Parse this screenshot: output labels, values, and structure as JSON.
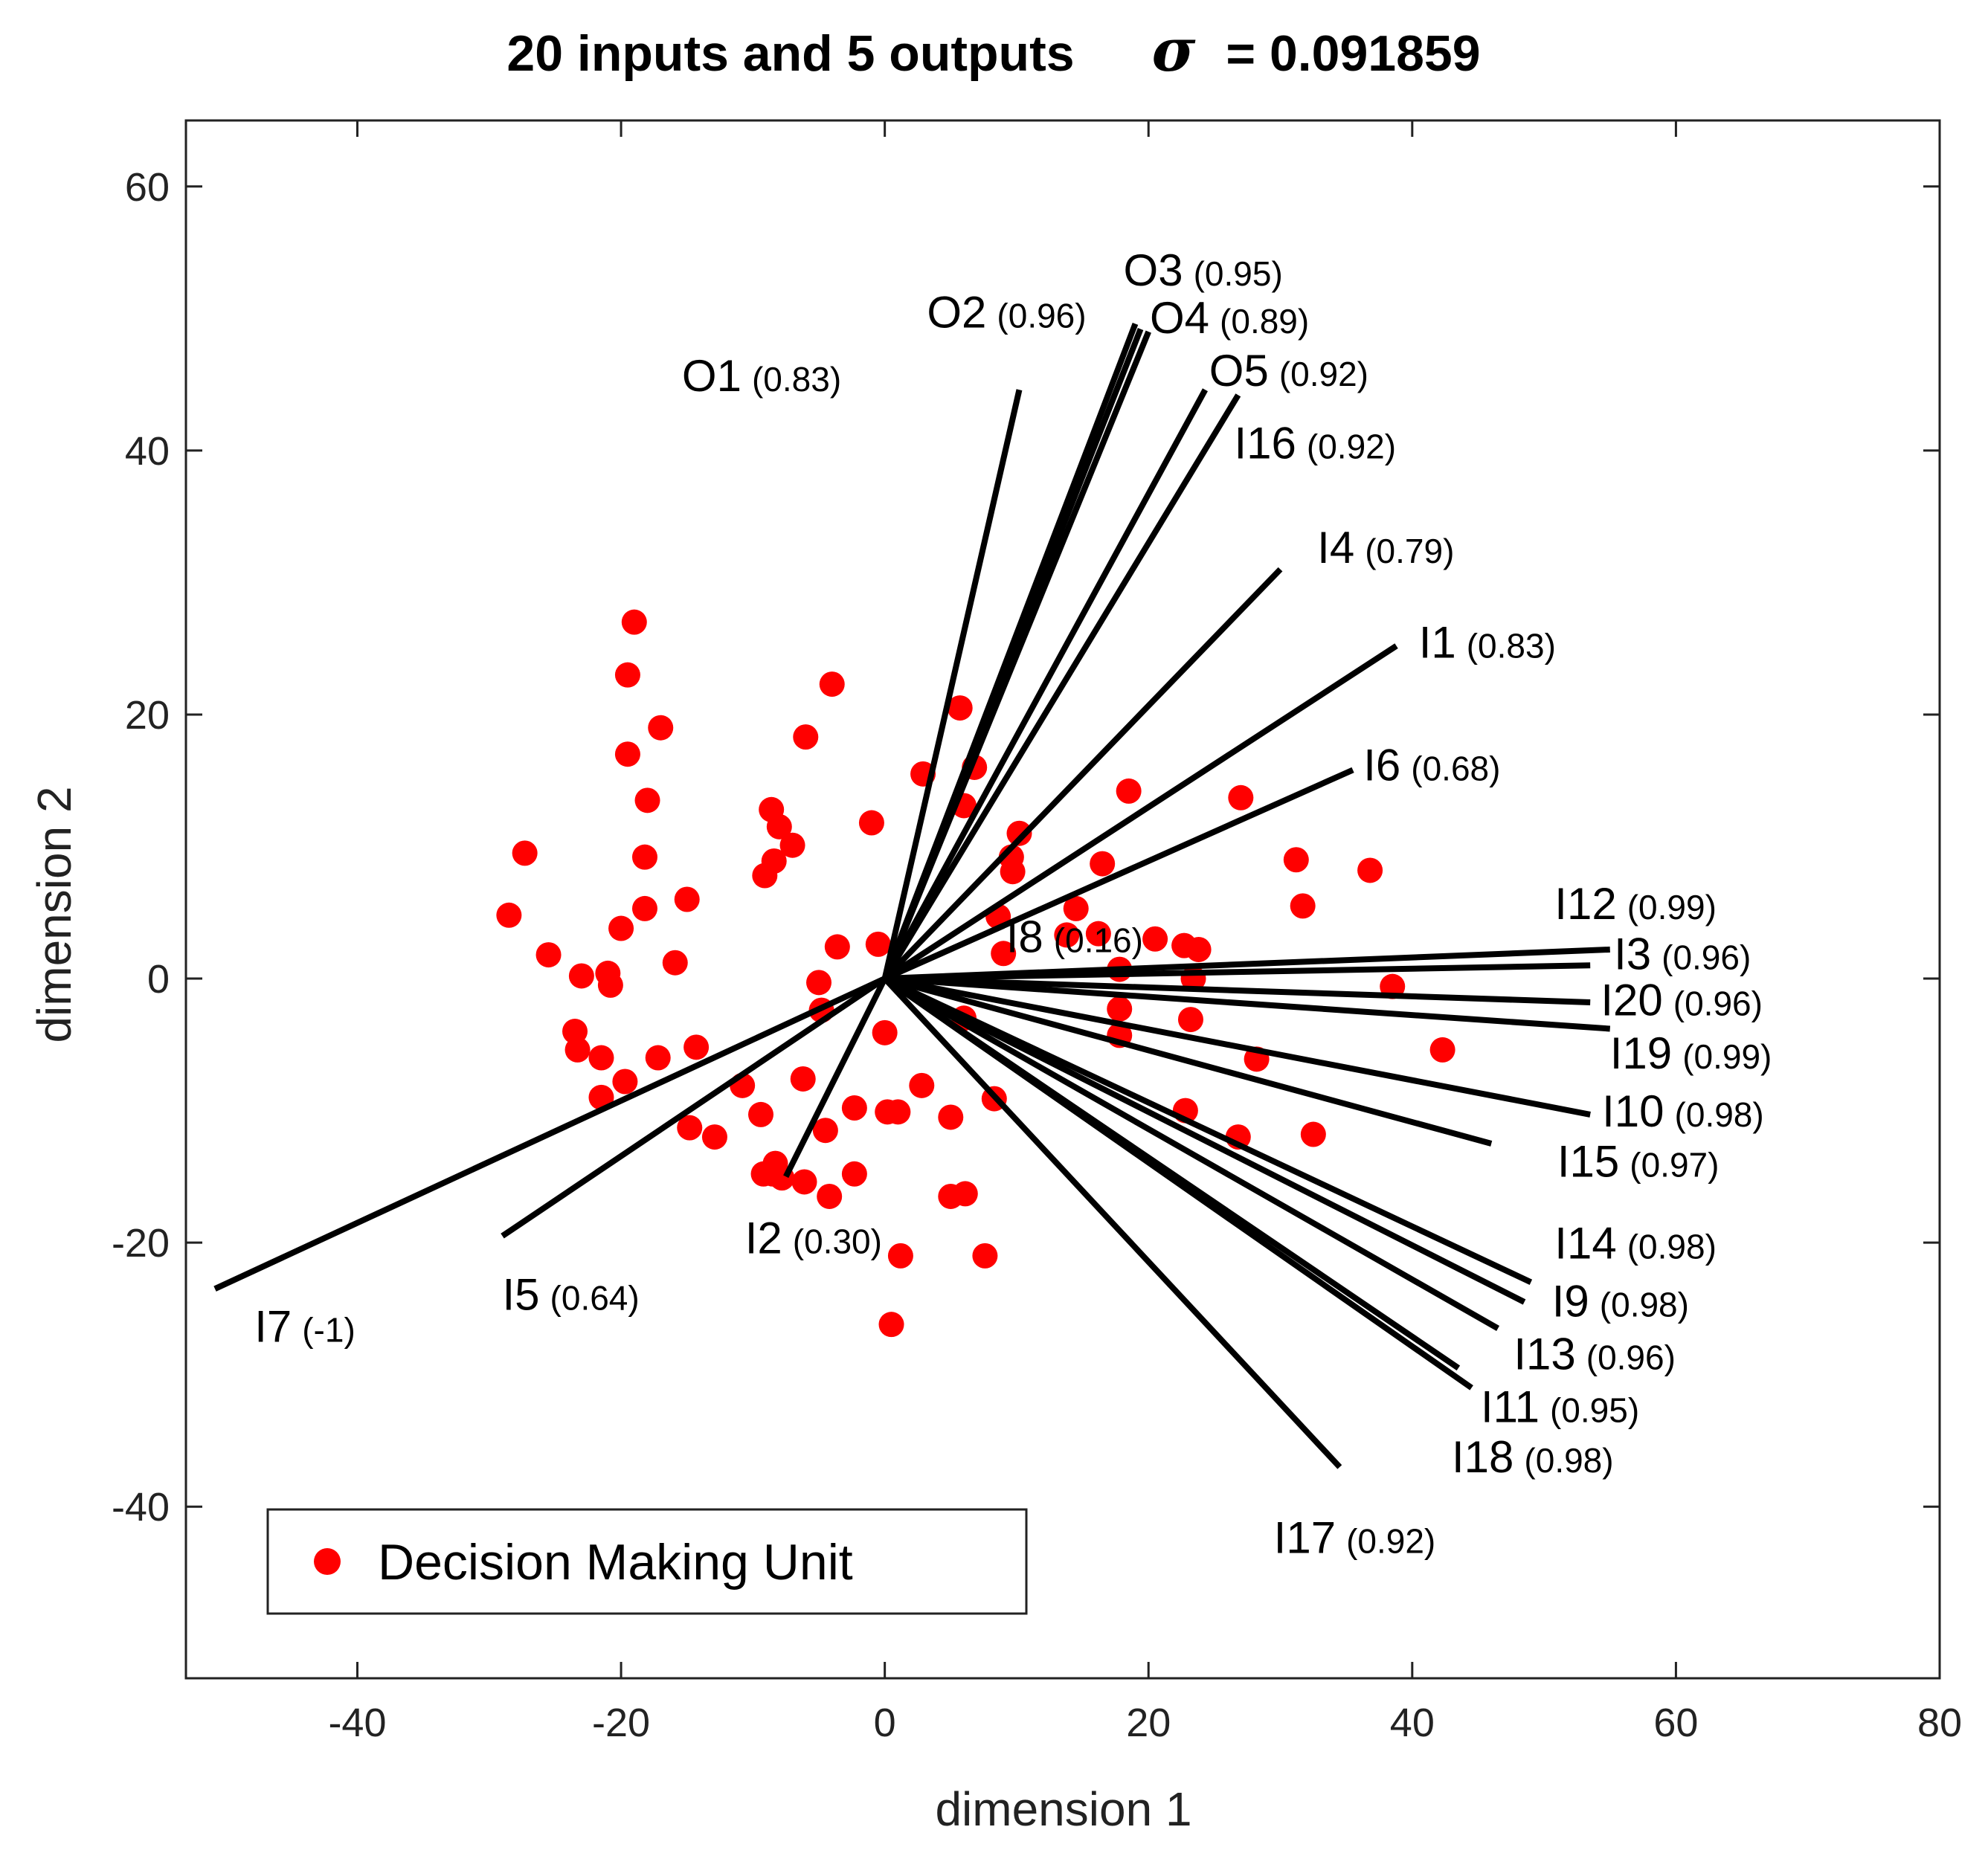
{
  "chart_data": {
    "type": "scatter",
    "title": "20 inputs and 5 outputs",
    "sigma_symbol": "σ",
    "sigma_value": "= 0.091859",
    "xlabel": "dimension 1",
    "ylabel": "dimension 2",
    "xlim": [
      -53,
      80
    ],
    "ylim": [
      -53,
      65
    ],
    "xticks": [
      -40,
      -20,
      0,
      20,
      40,
      60,
      80
    ],
    "yticks": [
      -40,
      -20,
      0,
      20,
      40,
      60
    ],
    "legend": {
      "label": "Decision Making Unit",
      "position": "bottom-left"
    },
    "colors": {
      "points": "#ff0000",
      "vectors": "#000000",
      "axes": "#222222"
    },
    "points": [
      [
        -19,
        27
      ],
      [
        -19.5,
        23
      ],
      [
        -19.5,
        17
      ],
      [
        -17,
        19
      ],
      [
        -18,
        13.5
      ],
      [
        -18.2,
        9.2
      ],
      [
        -18.2,
        5.3
      ],
      [
        -15,
        6
      ],
      [
        -20,
        3.8
      ],
      [
        -21,
        0.4
      ],
      [
        -20.8,
        -0.5
      ],
      [
        -23,
        0.2
      ],
      [
        -25.5,
        1.8
      ],
      [
        -28.5,
        4.8
      ],
      [
        -27.3,
        9.5
      ],
      [
        -23.5,
        -4
      ],
      [
        -23.3,
        -5.4
      ],
      [
        -21.5,
        -6
      ],
      [
        -21.5,
        -9
      ],
      [
        -19.7,
        -7.8
      ],
      [
        -17.2,
        -6
      ],
      [
        -15.9,
        1.2
      ],
      [
        -14.8,
        -11.3
      ],
      [
        -14.3,
        -5.2
      ],
      [
        -12.9,
        -12
      ],
      [
        -10.8,
        -8.1
      ],
      [
        -9.4,
        -10.3
      ],
      [
        -9.2,
        -14.8
      ],
      [
        -8.3,
        -14
      ],
      [
        -8.5,
        -14.8
      ],
      [
        -7.8,
        -15.1
      ],
      [
        -6.1,
        -15.4
      ],
      [
        -4.5,
        -11.5
      ],
      [
        -4.2,
        -16.5
      ],
      [
        -6.2,
        -7.6
      ],
      [
        -5,
        -0.3
      ],
      [
        -4.8,
        -2.4
      ],
      [
        -3.6,
        2.4
      ],
      [
        -4,
        22.3
      ],
      [
        -6,
        18.3
      ],
      [
        -8.6,
        12.8
      ],
      [
        -8,
        11.5
      ],
      [
        -7,
        10.1
      ],
      [
        -8.4,
        8.9
      ],
      [
        -9.1,
        7.8
      ],
      [
        -1,
        11.8
      ],
      [
        -0.5,
        2.6
      ],
      [
        0,
        -4.1
      ],
      [
        -2.3,
        -9.8
      ],
      [
        -2.3,
        -14.8
      ],
      [
        0.2,
        -10.1
      ],
      [
        1,
        -10.1
      ],
      [
        2.8,
        -8.1
      ],
      [
        1.2,
        -21
      ],
      [
        0.5,
        -26.2
      ],
      [
        5,
        -10.5
      ],
      [
        5,
        -16.5
      ],
      [
        6.1,
        -16.3
      ],
      [
        7.6,
        -21
      ],
      [
        8.3,
        -9.1
      ],
      [
        6,
        -3
      ],
      [
        2.9,
        15.5
      ],
      [
        5.7,
        20.5
      ],
      [
        6.8,
        16
      ],
      [
        6,
        13.1
      ],
      [
        10.2,
        11
      ],
      [
        9.6,
        9.2
      ],
      [
        9.7,
        8.1
      ],
      [
        8.6,
        4.7
      ],
      [
        9,
        1.9
      ],
      [
        13.8,
        3.3
      ],
      [
        14.5,
        5.3
      ],
      [
        16.2,
        3.4
      ],
      [
        16.5,
        8.7
      ],
      [
        18.5,
        14.2
      ],
      [
        17.8,
        0.7
      ],
      [
        17.8,
        -2.3
      ],
      [
        17.8,
        -4.3
      ],
      [
        22.7,
        2.5
      ],
      [
        23.4,
        0
      ],
      [
        23.2,
        -3.1
      ],
      [
        22.8,
        -10
      ],
      [
        26.8,
        -12
      ],
      [
        28.2,
        -6.1
      ],
      [
        27,
        13.7
      ],
      [
        31.2,
        9
      ],
      [
        31.7,
        5.5
      ],
      [
        36.8,
        8.2
      ],
      [
        38.5,
        -0.6
      ],
      [
        42.3,
        -5.4
      ],
      [
        32.5,
        -11.8
      ],
      [
        23.8,
        2.2
      ],
      [
        20.5,
        3
      ]
    ],
    "vectors": [
      {
        "name": "O1",
        "value": "(0.83)",
        "end": [
          10.2,
          44.6
        ],
        "label_at": [
          -3.3,
          44.5
        ],
        "anchor": "end"
      },
      {
        "name": "O2",
        "value": "(0.96)",
        "end": [
          19.0,
          49.6
        ],
        "label_at": [
          3.2,
          49.3
        ],
        "anchor": "start"
      },
      {
        "name": "O3",
        "value": "(0.95)",
        "end": [
          19.4,
          49.2
        ],
        "label_at": [
          18.1,
          52.5
        ],
        "anchor": "start"
      },
      {
        "name": "O4",
        "value": "(0.89)",
        "end": [
          20.0,
          49.0
        ],
        "label_at": [
          20.1,
          48.9
        ],
        "anchor": "start"
      },
      {
        "name": "O5",
        "value": "(0.92)",
        "end": [
          24.3,
          44.6
        ],
        "label_at": [
          24.6,
          44.9
        ],
        "anchor": "start"
      },
      {
        "name": "I16",
        "value": "(0.92)",
        "end": [
          26.8,
          44.2
        ],
        "label_at": [
          26.5,
          39.4
        ],
        "anchor": "start"
      },
      {
        "name": "I4",
        "value": "(0.79)",
        "end": [
          30.0,
          31.0
        ],
        "label_at": [
          32.8,
          31.5
        ],
        "anchor": "start"
      },
      {
        "name": "I1",
        "value": "(0.83)",
        "end": [
          38.8,
          25.2
        ],
        "label_at": [
          40.5,
          24.3
        ],
        "anchor": "start"
      },
      {
        "name": "I6",
        "value": "(0.68)",
        "end": [
          35.5,
          15.8
        ],
        "label_at": [
          36.3,
          15.0
        ],
        "anchor": "start"
      },
      {
        "name": "I8",
        "value": "(0.16)",
        "end": [
          9.0,
          4.0
        ],
        "label_at": [
          9.2,
          2.0
        ],
        "anchor": "start"
      },
      {
        "name": "I12",
        "value": "(0.99)",
        "end": [
          55.0,
          2.2
        ],
        "label_at": [
          50.8,
          4.5
        ],
        "anchor": "start"
      },
      {
        "name": "I3",
        "value": "(0.96)",
        "end": [
          53.5,
          1.0
        ],
        "label_at": [
          55.3,
          0.7
        ],
        "anchor": "start"
      },
      {
        "name": "I20",
        "value": "(0.96)",
        "end": [
          53.5,
          -1.8
        ],
        "label_at": [
          54.3,
          -2.8
        ],
        "anchor": "start"
      },
      {
        "name": "I19",
        "value": "(0.99)",
        "end": [
          55.0,
          -3.8
        ],
        "label_at": [
          55.0,
          -6.8
        ],
        "anchor": "start"
      },
      {
        "name": "I10",
        "value": "(0.98)",
        "end": [
          53.5,
          -10.3
        ],
        "label_at": [
          54.4,
          -11.2
        ],
        "anchor": "start"
      },
      {
        "name": "I15",
        "value": "(0.97)",
        "end": [
          46.0,
          -12.5
        ],
        "label_at": [
          51.0,
          -15.0
        ],
        "anchor": "start"
      },
      {
        "name": "I14",
        "value": "(0.98)",
        "end": [
          49.0,
          -23.0
        ],
        "label_at": [
          50.8,
          -21.2
        ],
        "anchor": "start"
      },
      {
        "name": "I9",
        "value": "(0.98)",
        "end": [
          48.5,
          -24.5
        ],
        "label_at": [
          50.6,
          -25.6
        ],
        "anchor": "start"
      },
      {
        "name": "I13",
        "value": "(0.96)",
        "end": [
          46.5,
          -26.5
        ],
        "label_at": [
          47.7,
          -29.6
        ],
        "anchor": "start"
      },
      {
        "name": "I11",
        "value": "(0.95)",
        "end": [
          44.5,
          -31.0
        ],
        "label_at": [
          45.2,
          -33.6
        ],
        "anchor": "start"
      },
      {
        "name": "I18",
        "value": "(0.98)",
        "end": [
          43.5,
          -29.5
        ],
        "label_at": [
          43.0,
          -37.4
        ],
        "anchor": "start"
      },
      {
        "name": "I17",
        "value": "(0.92)",
        "end": [
          34.5,
          -37.0
        ],
        "label_at": [
          29.5,
          -43.5
        ],
        "anchor": "start"
      },
      {
        "name": "I2",
        "value": "(0.30)",
        "end": [
          -7.5,
          -15.0
        ],
        "label_at": [
          -10.6,
          -20.8
        ],
        "anchor": "start"
      },
      {
        "name": "I5",
        "value": "(0.64)",
        "end": [
          -29.0,
          -19.5
        ],
        "label_at": [
          -29.0,
          -25.1
        ],
        "anchor": "start"
      },
      {
        "name": "I7",
        "value": "(-1)",
        "end": [
          -50.8,
          -23.5
        ],
        "label_at": [
          -47.8,
          -27.5
        ],
        "anchor": "start"
      }
    ]
  }
}
